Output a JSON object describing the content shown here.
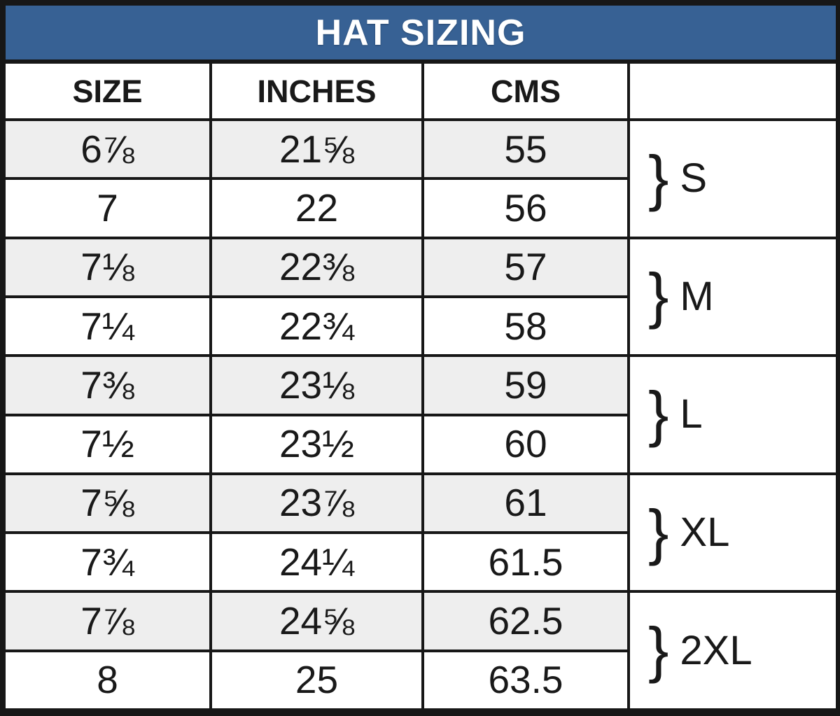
{
  "colors": {
    "title_bg": "#376194",
    "title_text": "#ffffff",
    "gridline": "#171717",
    "shaded_row": "#eeeeee",
    "plain_row": "#ffffff",
    "text": "#191919"
  },
  "chart_data": {
    "type": "table",
    "title": "HAT SIZING",
    "columns": [
      "SIZE",
      "INCHES",
      "CMS",
      ""
    ],
    "brace": "}",
    "rows": [
      {
        "size": "6⅞",
        "inches": "21⅝",
        "cms": "55",
        "shaded": true
      },
      {
        "size": "7",
        "inches": "22",
        "cms": "56",
        "shaded": false
      },
      {
        "size": "7⅛",
        "inches": "22⅜",
        "cms": "57",
        "shaded": true
      },
      {
        "size": "7¼",
        "inches": "22¾",
        "cms": "58",
        "shaded": false
      },
      {
        "size": "7⅜",
        "inches": "23⅛",
        "cms": "59",
        "shaded": true
      },
      {
        "size": "7½",
        "inches": "23½",
        "cms": "60",
        "shaded": false
      },
      {
        "size": "7⅝",
        "inches": "23⅞",
        "cms": "61",
        "shaded": true
      },
      {
        "size": "7¾",
        "inches": "24¼",
        "cms": "61.5",
        "shaded": false
      },
      {
        "size": "7⅞",
        "inches": "24⅝",
        "cms": "62.5",
        "shaded": true
      },
      {
        "size": "8",
        "inches": "25",
        "cms": "63.5",
        "shaded": false
      }
    ],
    "groups": [
      {
        "label": "S",
        "span_rows": [
          1,
          2
        ]
      },
      {
        "label": "M",
        "span_rows": [
          3,
          4
        ]
      },
      {
        "label": "L",
        "span_rows": [
          5,
          6
        ]
      },
      {
        "label": "XL",
        "span_rows": [
          7,
          8
        ]
      },
      {
        "label": "2XL",
        "span_rows": [
          9,
          10
        ]
      }
    ],
    "layout": {
      "grid": true,
      "group_column_position": "right"
    }
  }
}
